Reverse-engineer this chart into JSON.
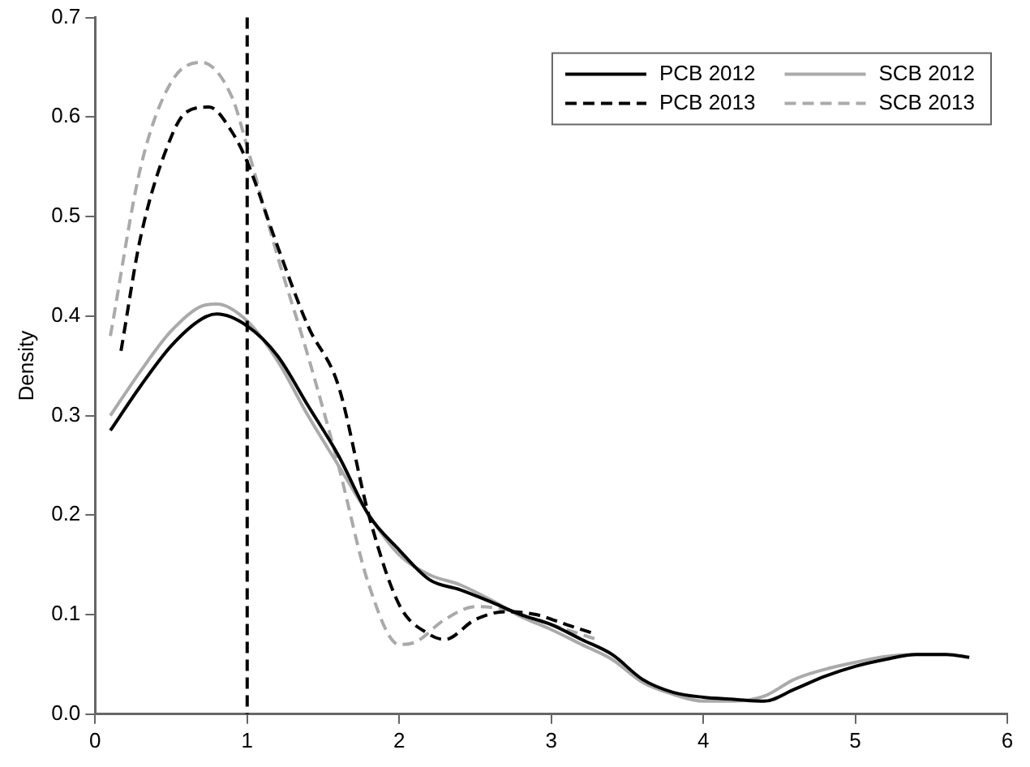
{
  "chart_data": {
    "type": "line",
    "ylabel": "Density",
    "xlim": [
      0,
      6
    ],
    "ylim": [
      0,
      0.7
    ],
    "xticks": [
      0,
      1,
      2,
      3,
      4,
      5,
      6
    ],
    "yticks": [
      {
        "value": 0,
        "label": "0.0"
      },
      0.1,
      0.2,
      0.3,
      0.4,
      0.5,
      0.6,
      0.7
    ],
    "grid": false,
    "legend": "top right",
    "marker": "none",
    "ref_lines": [
      {
        "axis": "x",
        "value": 1,
        "color": "#000000",
        "line_style": "dashed"
      }
    ],
    "series": [
      {
        "name": "PCB 2012",
        "color": "#000000",
        "line_style": "solid",
        "x": [
          0.1,
          0.3,
          0.5,
          0.7,
          0.8,
          1.0,
          1.2,
          1.4,
          1.6,
          1.8,
          2.0,
          2.2,
          2.4,
          2.6,
          2.8,
          3.0,
          3.2,
          3.4,
          3.6,
          3.8,
          4.0,
          4.2,
          4.4,
          4.6,
          4.8,
          5.0,
          5.2,
          5.4,
          5.6,
          5.75
        ],
        "values": [
          0.285,
          0.33,
          0.37,
          0.397,
          0.402,
          0.39,
          0.36,
          0.31,
          0.26,
          0.2,
          0.165,
          0.135,
          0.125,
          0.113,
          0.1,
          0.09,
          0.075,
          0.06,
          0.035,
          0.022,
          0.017,
          0.015,
          0.013,
          0.025,
          0.038,
          0.048,
          0.055,
          0.06,
          0.06,
          0.057
        ]
      },
      {
        "name": "PCB 2013",
        "color": "#000000",
        "line_style": "dashed",
        "x": [
          0.17,
          0.3,
          0.5,
          0.6,
          0.75,
          0.9,
          1.0,
          1.2,
          1.4,
          1.6,
          1.8,
          2.0,
          2.2,
          2.3,
          2.5,
          2.7,
          2.9,
          3.1,
          3.3
        ],
        "values": [
          0.365,
          0.48,
          0.58,
          0.605,
          0.61,
          0.585,
          0.555,
          0.47,
          0.39,
          0.33,
          0.2,
          0.11,
          0.08,
          0.075,
          0.095,
          0.103,
          0.1,
          0.09,
          0.08
        ]
      },
      {
        "name": "SCB 2012",
        "color": "#aaaaaa",
        "line_style": "solid",
        "x": [
          0.1,
          0.3,
          0.5,
          0.7,
          0.8,
          1.0,
          1.2,
          1.4,
          1.6,
          1.8,
          2.0,
          2.2,
          2.4,
          2.6,
          2.8,
          3.0,
          3.2,
          3.4,
          3.6,
          3.8,
          4.0,
          4.2,
          4.4,
          4.6,
          4.8,
          5.0,
          5.2,
          5.4,
          5.6
        ],
        "values": [
          0.3,
          0.345,
          0.385,
          0.41,
          0.412,
          0.395,
          0.355,
          0.3,
          0.25,
          0.2,
          0.16,
          0.14,
          0.13,
          0.115,
          0.098,
          0.085,
          0.07,
          0.055,
          0.032,
          0.02,
          0.013,
          0.013,
          0.018,
          0.035,
          0.045,
          0.052,
          0.058,
          0.06,
          0.06
        ]
      },
      {
        "name": "SCB 2013",
        "color": "#aaaaaa",
        "line_style": "dashed",
        "x": [
          0.1,
          0.3,
          0.5,
          0.7,
          0.9,
          1.0,
          1.2,
          1.4,
          1.6,
          1.8,
          2.0,
          2.1,
          2.3,
          2.5,
          2.7,
          2.9,
          3.1,
          3.3
        ],
        "values": [
          0.38,
          0.55,
          0.635,
          0.655,
          0.62,
          0.57,
          0.46,
          0.36,
          0.25,
          0.13,
          0.07,
          0.072,
          0.095,
          0.108,
          0.105,
          0.095,
          0.085,
          0.075
        ]
      }
    ]
  }
}
